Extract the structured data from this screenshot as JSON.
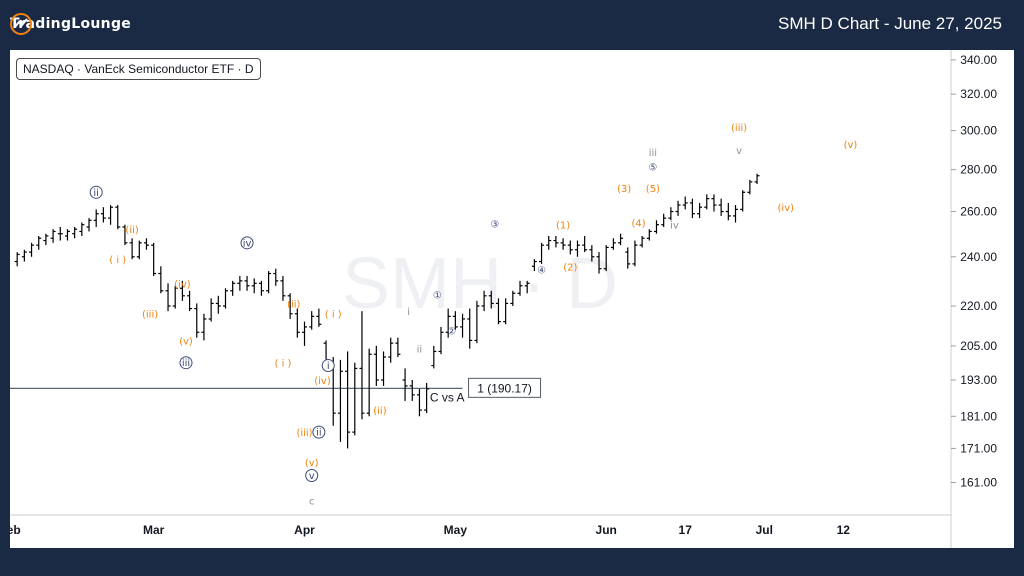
{
  "header": {
    "brand": "TradingLounge",
    "title": "SMH D Chart - June 27, 2025"
  },
  "symbol_label": "NASDAQ · VanEck Semiconductor ETF · D",
  "watermark": "SMH · D",
  "colors": {
    "background": "#1b2a44",
    "candle": "#000000",
    "wave_orange": "#f0820f",
    "wave_navy": "#3c4a78",
    "wave_gray": "#8a8f98",
    "level_line": "#5e6873"
  },
  "chart_data": {
    "type": "ohlc",
    "title": "SMH D Chart - June 27, 2025",
    "y_ticks": [
      161,
      171,
      181,
      193,
      205,
      220,
      240,
      260,
      280,
      300,
      320,
      340
    ],
    "y_tick_labels": [
      "161.00",
      "171.00",
      "181.00",
      "193.00",
      "205.00",
      "220.00",
      "240.00",
      "260.00",
      "280.00",
      "300.00",
      "320.00",
      "340.00"
    ],
    "ylim": [
      152,
      346
    ],
    "x_range": [
      0,
      131
    ],
    "x_labels": [
      {
        "x": 0,
        "label": "Feb"
      },
      {
        "x": 20,
        "label": "Mar"
      },
      {
        "x": 41,
        "label": "Apr"
      },
      {
        "x": 62,
        "label": "May"
      },
      {
        "x": 83,
        "label": "Jun"
      },
      {
        "x": 94,
        "label": "17"
      },
      {
        "x": 105,
        "label": "Jul"
      },
      {
        "x": 116,
        "label": "12"
      }
    ],
    "ohlc": [
      [
        1,
        238,
        242,
        236,
        241
      ],
      [
        2,
        240,
        243,
        238,
        242
      ],
      [
        3,
        242,
        246,
        240,
        245
      ],
      [
        4,
        245,
        249,
        243,
        248
      ],
      [
        5,
        247,
        250,
        245,
        249
      ],
      [
        6,
        248,
        252,
        246,
        251
      ],
      [
        7,
        250,
        253,
        247,
        250
      ],
      [
        8,
        249,
        252,
        247,
        251
      ],
      [
        9,
        250,
        253,
        248,
        252
      ],
      [
        10,
        251,
        255,
        249,
        254
      ],
      [
        11,
        253,
        257,
        251,
        256
      ],
      [
        12,
        256,
        261,
        253,
        259
      ],
      [
        13,
        259,
        262,
        255,
        257
      ],
      [
        14,
        257,
        263,
        254,
        262
      ],
      [
        15,
        262,
        263,
        252,
        253
      ],
      [
        16,
        253,
        254,
        245,
        246
      ],
      [
        17,
        246,
        248,
        239,
        240
      ],
      [
        18,
        240,
        247,
        239,
        246
      ],
      [
        19,
        246,
        248,
        243,
        245
      ],
      [
        20,
        245,
        246,
        232,
        233
      ],
      [
        21,
        233,
        236,
        225,
        226
      ],
      [
        22,
        226,
        229,
        218,
        220
      ],
      [
        23,
        220,
        228,
        219,
        227
      ],
      [
        24,
        227,
        230,
        222,
        224
      ],
      [
        25,
        224,
        226,
        218,
        219
      ],
      [
        26,
        219,
        221,
        208,
        210
      ],
      [
        27,
        210,
        217,
        207,
        215
      ],
      [
        28,
        215,
        223,
        214,
        221
      ],
      [
        29,
        221,
        224,
        217,
        220
      ],
      [
        30,
        220,
        227,
        219,
        226
      ],
      [
        31,
        226,
        230,
        224,
        229
      ],
      [
        32,
        229,
        232,
        226,
        230
      ],
      [
        33,
        230,
        232,
        226,
        228
      ],
      [
        34,
        228,
        231,
        225,
        229
      ],
      [
        35,
        229,
        230,
        224,
        226
      ],
      [
        36,
        226,
        234,
        225,
        233
      ],
      [
        37,
        233,
        235,
        228,
        230
      ],
      [
        38,
        230,
        232,
        222,
        224
      ],
      [
        39,
        224,
        225,
        215,
        217
      ],
      [
        40,
        217,
        219,
        208,
        210
      ],
      [
        41,
        210,
        214,
        205,
        212
      ],
      [
        42,
        212,
        218,
        211,
        216
      ],
      [
        43,
        216,
        219,
        212,
        213
      ],
      [
        44,
        206,
        207,
        196,
        198
      ],
      [
        45,
        198,
        201,
        178,
        182
      ],
      [
        46,
        182,
        200,
        173,
        196
      ],
      [
        47,
        196,
        203,
        171,
        176
      ],
      [
        48,
        176,
        199,
        175,
        197
      ],
      [
        49,
        197,
        218,
        180,
        182
      ],
      [
        50,
        182,
        204,
        181,
        202
      ],
      [
        51,
        202,
        205,
        191,
        193
      ],
      [
        52,
        193,
        203,
        191,
        201
      ],
      [
        53,
        201,
        208,
        199,
        206
      ],
      [
        54,
        206,
        208,
        201,
        202
      ],
      [
        55,
        193,
        197,
        186,
        191
      ],
      [
        56,
        191,
        193,
        186,
        188
      ],
      [
        57,
        188,
        190,
        181,
        183
      ],
      [
        58,
        183,
        192,
        182,
        190
      ],
      [
        59,
        198,
        205,
        197,
        203
      ],
      [
        60,
        203,
        212,
        202,
        210
      ],
      [
        61,
        210,
        219,
        208,
        216
      ],
      [
        62,
        216,
        218,
        211,
        212
      ],
      [
        63,
        212,
        217,
        208,
        215
      ],
      [
        64,
        215,
        219,
        204,
        207
      ],
      [
        65,
        207,
        222,
        206,
        220
      ],
      [
        66,
        220,
        226,
        218,
        224
      ],
      [
        67,
        224,
        226,
        219,
        221
      ],
      [
        68,
        221,
        223,
        213,
        214
      ],
      [
        69,
        214,
        223,
        213,
        221
      ],
      [
        70,
        221,
        226,
        220,
        225
      ],
      [
        71,
        225,
        230,
        224,
        228
      ],
      [
        72,
        228,
        230,
        225,
        229
      ],
      [
        73,
        236,
        239,
        234,
        238
      ],
      [
        74,
        238,
        246,
        237,
        245
      ],
      [
        75,
        245,
        249,
        243,
        247
      ],
      [
        76,
        247,
        249,
        244,
        246
      ],
      [
        77,
        246,
        248,
        243,
        245
      ],
      [
        78,
        245,
        247,
        241,
        243
      ],
      [
        79,
        243,
        247,
        240,
        245
      ],
      [
        80,
        245,
        249,
        242,
        243
      ],
      [
        81,
        243,
        245,
        238,
        240
      ],
      [
        82,
        240,
        242,
        233,
        235
      ],
      [
        83,
        235,
        245,
        234,
        244
      ],
      [
        84,
        244,
        248,
        243,
        246
      ],
      [
        85,
        246,
        250,
        245,
        248
      ],
      [
        86,
        242,
        244,
        235,
        237
      ],
      [
        87,
        237,
        247,
        236,
        245
      ],
      [
        88,
        245,
        249,
        244,
        248
      ],
      [
        89,
        248,
        252,
        247,
        251
      ],
      [
        90,
        251,
        256,
        250,
        254
      ],
      [
        91,
        254,
        259,
        253,
        257
      ],
      [
        92,
        257,
        262,
        256,
        260
      ],
      [
        93,
        260,
        265,
        258,
        263
      ],
      [
        94,
        263,
        267,
        261,
        264
      ],
      [
        95,
        264,
        266,
        257,
        259
      ],
      [
        96,
        259,
        264,
        257,
        262
      ],
      [
        97,
        262,
        268,
        261,
        266
      ],
      [
        98,
        266,
        268,
        260,
        263
      ],
      [
        99,
        263,
        266,
        258,
        260
      ],
      [
        100,
        260,
        264,
        256,
        258
      ],
      [
        101,
        258,
        263,
        255,
        261
      ],
      [
        102,
        261,
        270,
        260,
        269
      ],
      [
        103,
        269,
        275,
        268,
        274
      ],
      [
        104,
        274,
        278,
        273,
        277
      ]
    ],
    "level": {
      "price": 190.17,
      "label": "1 (190.17)",
      "note": "C vs A",
      "x_start": 0,
      "x_end": 63
    },
    "wave_labels": [
      {
        "x": 12,
        "y": 269,
        "text": "ii",
        "style": "navy"
      },
      {
        "x": 17,
        "y": 252,
        "text": "(ii)",
        "style": "orange"
      },
      {
        "x": 15,
        "y": 239,
        "text": "( i )",
        "style": "orange"
      },
      {
        "x": 19.5,
        "y": 217,
        "text": "(iii)",
        "style": "orange"
      },
      {
        "x": 24,
        "y": 229,
        "text": "(iv)",
        "style": "orange"
      },
      {
        "x": 24.5,
        "y": 207,
        "text": "(v)",
        "style": "orange"
      },
      {
        "x": 24.5,
        "y": 199,
        "text": "iii",
        "style": "navy"
      },
      {
        "x": 33,
        "y": 246,
        "text": "iv",
        "style": "navy"
      },
      {
        "x": 39.5,
        "y": 221,
        "text": "(ii)",
        "style": "orange"
      },
      {
        "x": 38,
        "y": 199,
        "text": "( i )",
        "style": "orange"
      },
      {
        "x": 43.5,
        "y": 193,
        "text": "(iv)",
        "style": "orange"
      },
      {
        "x": 44.3,
        "y": 198,
        "text": "i",
        "style": "navy"
      },
      {
        "x": 41,
        "y": 176,
        "text": "(iii)",
        "style": "orange"
      },
      {
        "x": 43,
        "y": 176,
        "text": "ii",
        "style": "navy"
      },
      {
        "x": 42,
        "y": 167,
        "text": "(v)",
        "style": "orange"
      },
      {
        "x": 42,
        "y": 163,
        "text": "v",
        "style": "navy"
      },
      {
        "x": 42,
        "y": 156,
        "text": "c",
        "style": "gray"
      },
      {
        "x": 45,
        "y": 217,
        "text": "( i )",
        "style": "orange"
      },
      {
        "x": 51.5,
        "y": 183,
        "text": "(ii)",
        "style": "orange"
      },
      {
        "x": 55.5,
        "y": 218,
        "text": "i",
        "style": "gray"
      },
      {
        "x": 57,
        "y": 204,
        "text": "ii",
        "style": "gray"
      },
      {
        "x": 59.5,
        "y": 225,
        "text": "1",
        "style": "navy"
      },
      {
        "x": 61.5,
        "y": 211,
        "text": "2",
        "style": "navy"
      },
      {
        "x": 67.5,
        "y": 255,
        "text": "3",
        "style": "navy"
      },
      {
        "x": 74,
        "y": 235,
        "text": "4",
        "style": "navy"
      },
      {
        "x": 77,
        "y": 254,
        "text": "(1)",
        "style": "orange"
      },
      {
        "x": 78,
        "y": 236,
        "text": "(2)",
        "style": "orange"
      },
      {
        "x": 85.5,
        "y": 271,
        "text": "(3)",
        "style": "orange"
      },
      {
        "x": 87.5,
        "y": 255,
        "text": "(4)",
        "style": "orange"
      },
      {
        "x": 89.5,
        "y": 271,
        "text": "(5)",
        "style": "orange"
      },
      {
        "x": 89.5,
        "y": 282,
        "text": "5",
        "style": "navy"
      },
      {
        "x": 89.5,
        "y": 289,
        "text": "iii",
        "style": "gray"
      },
      {
        "x": 92.5,
        "y": 254,
        "text": "iv",
        "style": "gray"
      },
      {
        "x": 101.5,
        "y": 302,
        "text": "(iii)",
        "style": "orange"
      },
      {
        "x": 101.5,
        "y": 290,
        "text": "v",
        "style": "gray"
      },
      {
        "x": 108,
        "y": 262,
        "text": "(iv)",
        "style": "orange"
      },
      {
        "x": 117,
        "y": 293,
        "text": "(v)",
        "style": "orange"
      }
    ]
  }
}
